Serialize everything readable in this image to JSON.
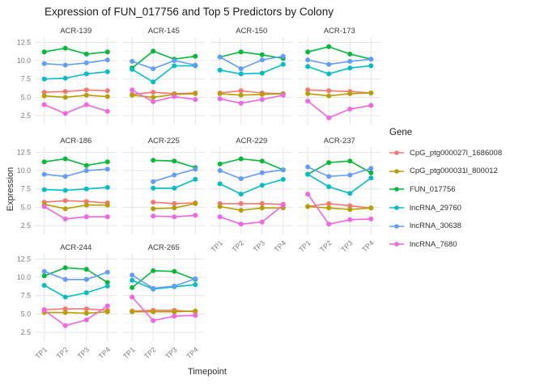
{
  "chart_data": {
    "type": "line",
    "title": "Expression of FUN_017756 and Top 5 Predictors by Colony",
    "xlabel": "Timepoint",
    "ylabel": "Expression",
    "legend_title": "Gene",
    "legend_position": "right",
    "grid": true,
    "x": [
      "TP1",
      "TP2",
      "TP3",
      "TP4"
    ],
    "yticks": [
      2.5,
      5.0,
      7.5,
      10.0,
      12.5
    ],
    "yticks_minor": [
      3.75,
      6.25,
      8.75,
      11.25
    ],
    "ylim": [
      1.3,
      13.2
    ],
    "series": [
      {
        "name": "CpG_ptg000027l_1686008",
        "color": "#F8766D"
      },
      {
        "name": "CpG_ptg000031l_800012",
        "color": "#B79F00"
      },
      {
        "name": "FUN_017756",
        "color": "#00BA38"
      },
      {
        "name": "lncRNA_29760",
        "color": "#00BFC4"
      },
      {
        "name": "lncRNA_30638",
        "color": "#619CFF"
      },
      {
        "name": "lncRNA_7680",
        "color": "#F564E2"
      }
    ],
    "facet_grid": [
      [
        0,
        1,
        2,
        3
      ],
      [
        4,
        5,
        6,
        7
      ],
      [
        8,
        9
      ]
    ],
    "facets": [
      {
        "colony": "ACR-139",
        "values": {
          "CpG_ptg000027l_1686008": [
            5.7,
            5.8,
            6.0,
            5.9
          ],
          "CpG_ptg000031l_800012": [
            5.2,
            5.0,
            5.3,
            5.1
          ],
          "FUN_017756": [
            11.2,
            11.7,
            10.9,
            11.2
          ],
          "lncRNA_29760": [
            7.5,
            7.6,
            8.2,
            8.5
          ],
          "lncRNA_30638": [
            9.6,
            9.4,
            9.7,
            10.1
          ],
          "lncRNA_7680": [
            4.0,
            2.8,
            4.0,
            3.1
          ]
        }
      },
      {
        "colony": "ACR-145",
        "values": {
          "CpG_ptg000027l_1686008": [
            5.4,
            5.7,
            5.5,
            5.6
          ],
          "CpG_ptg000031l_800012": [
            5.3,
            5.0,
            5.4,
            5.5
          ],
          "FUN_017756": [
            9.0,
            11.3,
            10.2,
            10.6
          ],
          "lncRNA_29760": [
            8.8,
            7.1,
            9.3,
            9.3
          ],
          "lncRNA_30638": [
            9.9,
            8.9,
            10.0,
            9.4
          ],
          "lncRNA_7680": [
            6.0,
            4.4,
            5.1,
            4.7
          ]
        }
      },
      {
        "colony": "ACR-150",
        "values": {
          "CpG_ptg000027l_1686008": [
            5.6,
            5.9,
            5.6,
            5.5
          ],
          "CpG_ptg000031l_800012": [
            5.5,
            5.3,
            5.4,
            5.5
          ],
          "FUN_017756": [
            10.5,
            11.2,
            10.8,
            10.3
          ],
          "lncRNA_29760": [
            8.7,
            8.2,
            8.3,
            9.5
          ],
          "lncRNA_30638": [
            10.5,
            8.9,
            10.1,
            10.6
          ],
          "lncRNA_7680": [
            4.8,
            4.2,
            4.7,
            5.3
          ]
        }
      },
      {
        "colony": "ACR-173",
        "values": {
          "CpG_ptg000027l_1686008": [
            6.0,
            5.9,
            5.8,
            5.6
          ],
          "CpG_ptg000031l_800012": [
            5.5,
            5.2,
            5.5,
            5.6
          ],
          "FUN_017756": [
            11.2,
            11.9,
            10.9,
            10.2
          ],
          "lncRNA_29760": [
            9.2,
            8.2,
            9.0,
            9.3
          ],
          "lncRNA_30638": [
            10.1,
            9.5,
            9.9,
            10.2
          ],
          "lncRNA_7680": [
            4.5,
            2.2,
            3.4,
            3.9
          ]
        }
      },
      {
        "colony": "ACR-186",
        "values": {
          "CpG_ptg000027l_1686008": [
            5.7,
            5.9,
            5.8,
            5.6
          ],
          "CpG_ptg000031l_800012": [
            5.4,
            4.8,
            5.3,
            5.3
          ],
          "FUN_017756": [
            11.2,
            11.6,
            10.7,
            11.2
          ],
          "lncRNA_29760": [
            7.4,
            7.3,
            7.5,
            7.7
          ],
          "lncRNA_30638": [
            9.5,
            9.2,
            10.0,
            10.2
          ],
          "lncRNA_7680": [
            5.1,
            3.4,
            3.7,
            3.7
          ]
        }
      },
      {
        "colony": "ACR-225",
        "values": {
          "CpG_ptg000027l_1686008": [
            null,
            5.7,
            5.5,
            5.6
          ],
          "CpG_ptg000031l_800012": [
            null,
            4.8,
            4.9,
            5.5
          ],
          "FUN_017756": [
            null,
            11.4,
            11.3,
            10.4
          ],
          "lncRNA_29760": [
            null,
            7.6,
            7.6,
            8.8
          ],
          "lncRNA_30638": [
            null,
            8.5,
            9.4,
            10.2
          ],
          "lncRNA_7680": [
            null,
            3.8,
            3.7,
            3.9
          ]
        }
      },
      {
        "colony": "ACR-229",
        "values": {
          "CpG_ptg000027l_1686008": [
            5.5,
            5.5,
            5.5,
            5.4
          ],
          "CpG_ptg000031l_800012": [
            5.1,
            4.6,
            4.9,
            4.9
          ],
          "FUN_017756": [
            10.9,
            11.6,
            11.3,
            10.1
          ],
          "lncRNA_29760": [
            8.2,
            6.8,
            8.0,
            8.8
          ],
          "lncRNA_30638": [
            10.0,
            8.9,
            9.7,
            10.1
          ],
          "lncRNA_7680": [
            3.7,
            2.7,
            3.0,
            5.3
          ]
        }
      },
      {
        "colony": "ACR-237",
        "values": {
          "CpG_ptg000027l_1686008": [
            5.1,
            5.5,
            5.2,
            4.9
          ],
          "CpG_ptg000031l_800012": [
            5.1,
            4.9,
            4.7,
            4.9
          ],
          "FUN_017756": [
            9.5,
            11.1,
            11.3,
            9.7
          ],
          "lncRNA_29760": [
            9.5,
            7.8,
            6.9,
            9.0
          ],
          "lncRNA_30638": [
            10.5,
            9.2,
            9.4,
            10.3
          ],
          "lncRNA_7680": [
            6.8,
            2.7,
            3.3,
            3.4
          ]
        }
      },
      {
        "colony": "ACR-244",
        "values": {
          "CpG_ptg000027l_1686008": [
            5.6,
            5.7,
            5.7,
            5.5
          ],
          "CpG_ptg000031l_800012": [
            5.2,
            5.2,
            5.1,
            5.3
          ],
          "FUN_017756": [
            10.2,
            11.3,
            11.1,
            9.3
          ],
          "lncRNA_29760": [
            8.9,
            7.3,
            7.9,
            8.8
          ],
          "lncRNA_30638": [
            10.8,
            9.7,
            9.7,
            10.7
          ],
          "lncRNA_7680": [
            5.5,
            3.4,
            4.2,
            6.1
          ]
        }
      },
      {
        "colony": "ACR-265",
        "values": {
          "CpG_ptg000027l_1686008": [
            5.4,
            5.5,
            5.5,
            5.3
          ],
          "CpG_ptg000031l_800012": [
            5.3,
            5.3,
            5.3,
            5.4
          ],
          "FUN_017756": [
            8.6,
            10.9,
            10.8,
            9.7
          ],
          "lncRNA_29760": [
            9.6,
            8.4,
            8.7,
            9.0
          ],
          "lncRNA_30638": [
            10.3,
            8.5,
            8.8,
            9.8
          ],
          "lncRNA_7680": [
            7.3,
            4.1,
            4.7,
            4.8
          ]
        }
      }
    ],
    "style": {
      "grid_major_color": "#e4e4e4",
      "grid_minor_color": "#f1f1f1",
      "tick_label_color": "#7b7b7b",
      "strip_label_color": "#383838",
      "background": "#ffffff"
    }
  }
}
